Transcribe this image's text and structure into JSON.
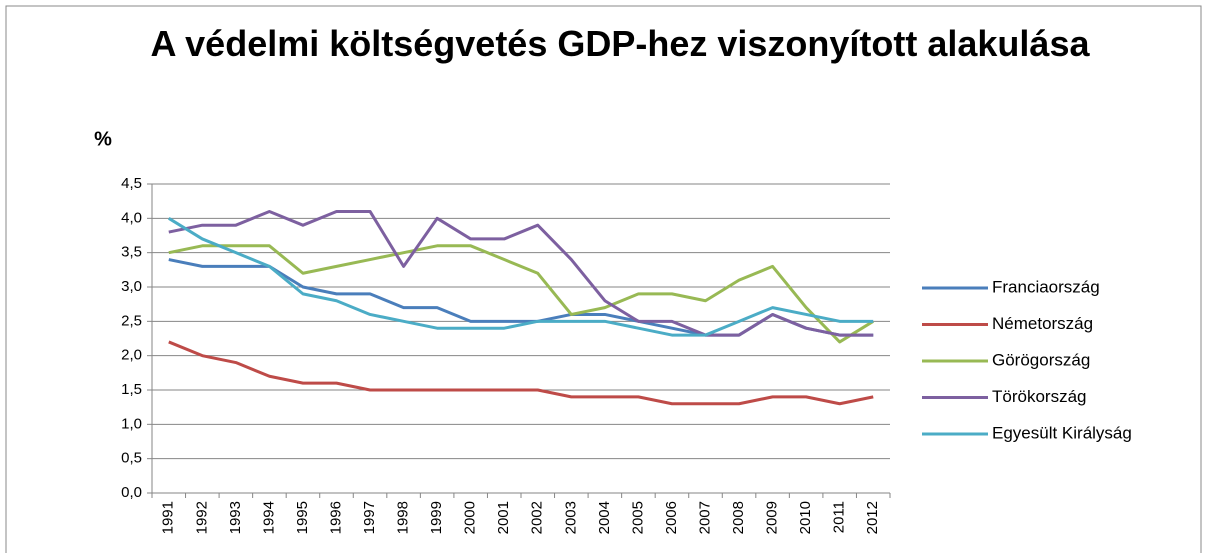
{
  "chart_data": {
    "type": "line",
    "title": "A védelmi költségvetés GDP-hez viszonyított alakulása",
    "y_label": "%",
    "categories": [
      "1991",
      "1992",
      "1993",
      "1994",
      "1995",
      "1996",
      "1997",
      "1998",
      "1999",
      "2000",
      "2001",
      "2002",
      "2003",
      "2004",
      "2005",
      "2006",
      "2007",
      "2008",
      "2009",
      "2010",
      "2011",
      "2012"
    ],
    "series": [
      {
        "name": "Franciaország",
        "color": "#4a7ebb",
        "values": [
          3.4,
          3.3,
          3.3,
          3.3,
          3.0,
          2.9,
          2.9,
          2.7,
          2.7,
          2.5,
          2.5,
          2.5,
          2.6,
          2.6,
          2.5,
          2.4,
          2.3,
          2.3,
          2.6,
          2.4,
          2.3,
          2.3
        ]
      },
      {
        "name": "Németország",
        "color": "#be4b48",
        "values": [
          2.2,
          2.0,
          1.9,
          1.7,
          1.6,
          1.6,
          1.5,
          1.5,
          1.5,
          1.5,
          1.5,
          1.5,
          1.4,
          1.4,
          1.4,
          1.3,
          1.3,
          1.3,
          1.4,
          1.4,
          1.3,
          1.4
        ]
      },
      {
        "name": "Görögország",
        "color": "#98b954",
        "values": [
          3.5,
          3.6,
          3.6,
          3.6,
          3.2,
          3.3,
          3.4,
          3.5,
          3.6,
          3.6,
          3.4,
          3.2,
          2.6,
          2.7,
          2.9,
          2.9,
          2.8,
          3.1,
          3.3,
          2.7,
          2.2,
          2.5
        ]
      },
      {
        "name": "Törökország",
        "color": "#7d60a0",
        "values": [
          3.8,
          3.9,
          3.9,
          4.1,
          3.9,
          4.1,
          4.1,
          3.3,
          4.0,
          3.7,
          3.7,
          3.9,
          3.4,
          2.8,
          2.5,
          2.5,
          2.3,
          2.3,
          2.6,
          2.4,
          2.3,
          2.3
        ]
      },
      {
        "name": "Egyesült Királyság",
        "color": "#4bacc6",
        "values": [
          4.0,
          3.7,
          3.5,
          3.3,
          2.9,
          2.8,
          2.6,
          2.5,
          2.4,
          2.4,
          2.4,
          2.5,
          2.5,
          2.5,
          2.4,
          2.3,
          2.3,
          2.5,
          2.7,
          2.6,
          2.5,
          2.5
        ]
      }
    ],
    "ylim": [
      0,
      4.5
    ],
    "yticks": [
      {
        "value": 0,
        "label": "0,0"
      },
      {
        "value": 0.5,
        "label": "0,5"
      },
      {
        "value": 1,
        "label": "1,0"
      },
      {
        "value": 1.5,
        "label": "1,5"
      },
      {
        "value": 2,
        "label": "2,0"
      },
      {
        "value": 2.5,
        "label": "2,5"
      },
      {
        "value": 3,
        "label": "3,0"
      },
      {
        "value": 3.5,
        "label": "3,5"
      },
      {
        "value": 4,
        "label": "4,0"
      },
      {
        "value": 4.5,
        "label": "4,5"
      }
    ],
    "grid": true,
    "legend": "right"
  }
}
